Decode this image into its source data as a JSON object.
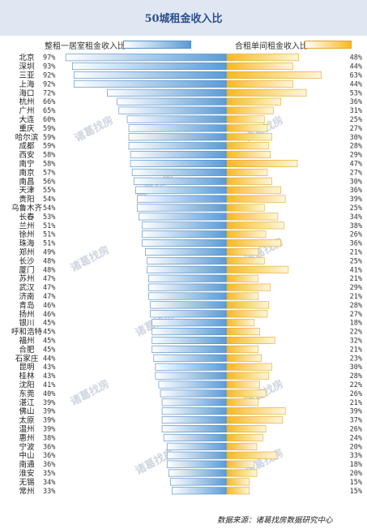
{
  "title": "50城租金收入比",
  "legend": {
    "left_label": "整租一居室租金收入比",
    "right_label": "合租单间租金收入比"
  },
  "watermark": "诸葛找房",
  "source": "数据来源：诸葛找房数据研究中心",
  "colors": {
    "left_bar": "#5b9bd5",
    "right_bar": "#f7b922",
    "header_bg": "#dfe7f3"
  },
  "chart_data": {
    "type": "bar",
    "orientation": "horizontal-diverging",
    "title": "50城租金收入比",
    "categories": [
      "北京",
      "深圳",
      "三亚",
      "上海",
      "海口",
      "杭州",
      "广州",
      "大连",
      "重庆",
      "哈尔滨",
      "成都",
      "西安",
      "南宁",
      "南京",
      "南昌",
      "天津",
      "贵阳",
      "乌鲁木齐",
      "长春",
      "兰州",
      "徐州",
      "珠海",
      "郑州",
      "长沙",
      "厦门",
      "苏州",
      "武汉",
      "济南",
      "青岛",
      "扬州",
      "银川",
      "呼和浩特",
      "福州",
      "合肥",
      "石家庄",
      "昆明",
      "桂林",
      "沈阳",
      "东莞",
      "湛江",
      "佛山",
      "太原",
      "温州",
      "惠州",
      "宁波",
      "中山",
      "南通",
      "淮安",
      "无锡",
      "常州"
    ],
    "series": [
      {
        "name": "整租一居室租金收入比",
        "unit": "%",
        "values": [
          97,
          93,
          92,
          92,
          72,
          66,
          65,
          60,
          59,
          59,
          59,
          58,
          58,
          57,
          56,
          55,
          54,
          54,
          53,
          51,
          51,
          51,
          49,
          48,
          48,
          47,
          47,
          47,
          46,
          46,
          45,
          45,
          45,
          45,
          44,
          43,
          43,
          41,
          40,
          39,
          39,
          39,
          39,
          38,
          36,
          36,
          36,
          35,
          34,
          33
        ]
      },
      {
        "name": "合租单间租金收入比",
        "unit": "%",
        "values": [
          48,
          44,
          63,
          44,
          53,
          36,
          31,
          25,
          27,
          30,
          28,
          29,
          47,
          27,
          30,
          36,
          39,
          25,
          34,
          38,
          26,
          36,
          21,
          25,
          41,
          21,
          29,
          21,
          28,
          27,
          18,
          22,
          32,
          21,
          23,
          30,
          28,
          22,
          26,
          21,
          39,
          37,
          26,
          24,
          20,
          33,
          18,
          20,
          15,
          15
        ]
      }
    ]
  }
}
